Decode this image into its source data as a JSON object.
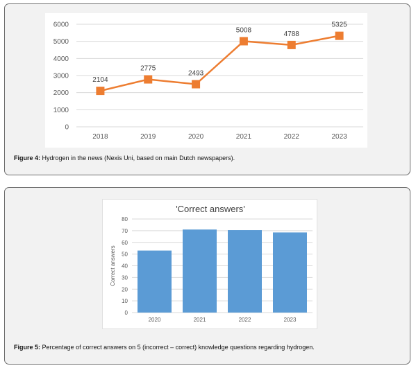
{
  "figure4": {
    "caption_label": "Figure 4:",
    "caption_text": "Hydrogen in the news (Nexis Uni, based on main Dutch newspapers)."
  },
  "figure5": {
    "caption_label": "Figure 5:",
    "caption_text": "Percentage of correct answers on 5 (incorrect – correct) knowledge questions regarding hydrogen."
  },
  "colors": {
    "line": "#ed7d31",
    "bar": "#5b9bd5",
    "grid": "#d9d9d9",
    "tick": "#595959"
  },
  "chart_data": [
    {
      "type": "line",
      "title": "",
      "xlabel": "",
      "ylabel": "",
      "x": [
        "2018",
        "2019",
        "2020",
        "2021",
        "2022",
        "2023"
      ],
      "series": [
        {
          "values": [
            2104,
            2775,
            2493,
            5008,
            4788,
            5325
          ],
          "data_labels": [
            "2104",
            "2775",
            "2493",
            "5008",
            "4788",
            "5325"
          ]
        }
      ],
      "yticks": [
        "0",
        "1000",
        "2000",
        "3000",
        "4000",
        "5000",
        "6000"
      ],
      "ylim": [
        0,
        6000
      ],
      "grid": true,
      "marker": "square"
    },
    {
      "type": "bar",
      "title": "'Correct answers'",
      "xlabel": "",
      "ylabel": "Correct answers",
      "categories": [
        "2020",
        "2021",
        "2022",
        "2023"
      ],
      "values": [
        53,
        71,
        70.5,
        68.5
      ],
      "yticks": [
        "0",
        "10",
        "20",
        "30",
        "40",
        "50",
        "60",
        "70",
        "80"
      ],
      "ylim": [
        0,
        80
      ],
      "grid": true
    }
  ]
}
